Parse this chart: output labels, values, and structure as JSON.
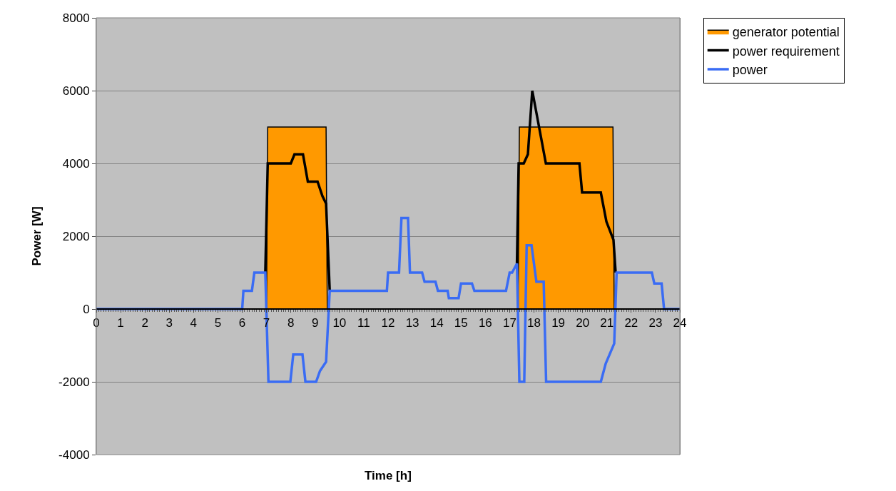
{
  "chart_data": {
    "type": "line",
    "xlabel": "Time [h]",
    "ylabel": "Power [W]",
    "xlim": [
      0,
      24
    ],
    "xticks": [
      0,
      1,
      2,
      3,
      4,
      5,
      6,
      7,
      8,
      9,
      10,
      11,
      12,
      13,
      14,
      15,
      16,
      17,
      18,
      19,
      20,
      21,
      22,
      23,
      24
    ],
    "ylim": [
      -4000,
      8000
    ],
    "yticks": [
      -4000,
      -2000,
      0,
      2000,
      4000,
      6000,
      8000
    ],
    "grid": "y",
    "legend": "top right",
    "line_style": "solid",
    "marker": "none",
    "series": [
      {
        "name": "generator potential",
        "type": "area",
        "color": "#ff9900",
        "x": [
          0,
          7.0,
          7.05,
          9.45,
          9.5,
          17.35,
          17.4,
          21.25,
          21.3,
          24
        ],
        "values": [
          0,
          0,
          5000,
          5000,
          0,
          0,
          5000,
          5000,
          0,
          0
        ]
      },
      {
        "name": "power requirement",
        "color": "#000000",
        "x": [
          6.95,
          7.05,
          8.0,
          8.15,
          8.5,
          8.7,
          9.1,
          9.3,
          9.45,
          9.6,
          9.65,
          17.3,
          17.37,
          17.58,
          17.75,
          17.93,
          18.49,
          19.87,
          19.98,
          20.75,
          20.98,
          21.27,
          21.36
        ],
        "values": [
          1000,
          4000,
          4000,
          4250,
          4250,
          3500,
          3500,
          3100,
          2900,
          500,
          null,
          1250,
          4000,
          4000,
          4250,
          6000,
          4000,
          4000,
          3200,
          3200,
          2400,
          1900,
          1000
        ]
      },
      {
        "name": "power",
        "color": "#3a6cf4",
        "x": [
          0,
          6.0,
          6.05,
          6.4,
          6.5,
          6.95,
          7.08,
          7.98,
          8.1,
          8.48,
          8.6,
          9.04,
          9.2,
          9.45,
          9.6,
          11.95,
          12.0,
          12.45,
          12.55,
          12.82,
          12.9,
          13.4,
          13.5,
          13.95,
          14.05,
          14.45,
          14.5,
          14.9,
          15.0,
          15.45,
          15.55,
          16.85,
          17.0,
          17.1,
          17.3,
          17.4,
          17.6,
          17.7,
          17.9,
          18.1,
          18.4,
          18.5,
          20.75,
          20.95,
          21.3,
          21.4,
          22.85,
          22.95,
          23.25,
          23.35,
          24
        ],
        "values": [
          0,
          0,
          500,
          500,
          1000,
          1000,
          -2000,
          -2000,
          -1250,
          -1250,
          -2000,
          -2000,
          -1700,
          -1450,
          500,
          500,
          1000,
          1000,
          2500,
          2500,
          1000,
          1000,
          750,
          750,
          500,
          500,
          300,
          300,
          700,
          700,
          500,
          500,
          1000,
          1000,
          1250,
          -2000,
          -2000,
          1750,
          1750,
          750,
          750,
          -2000,
          -2000,
          -1500,
          -950,
          1000,
          1000,
          700,
          700,
          0,
          0
        ]
      }
    ]
  }
}
